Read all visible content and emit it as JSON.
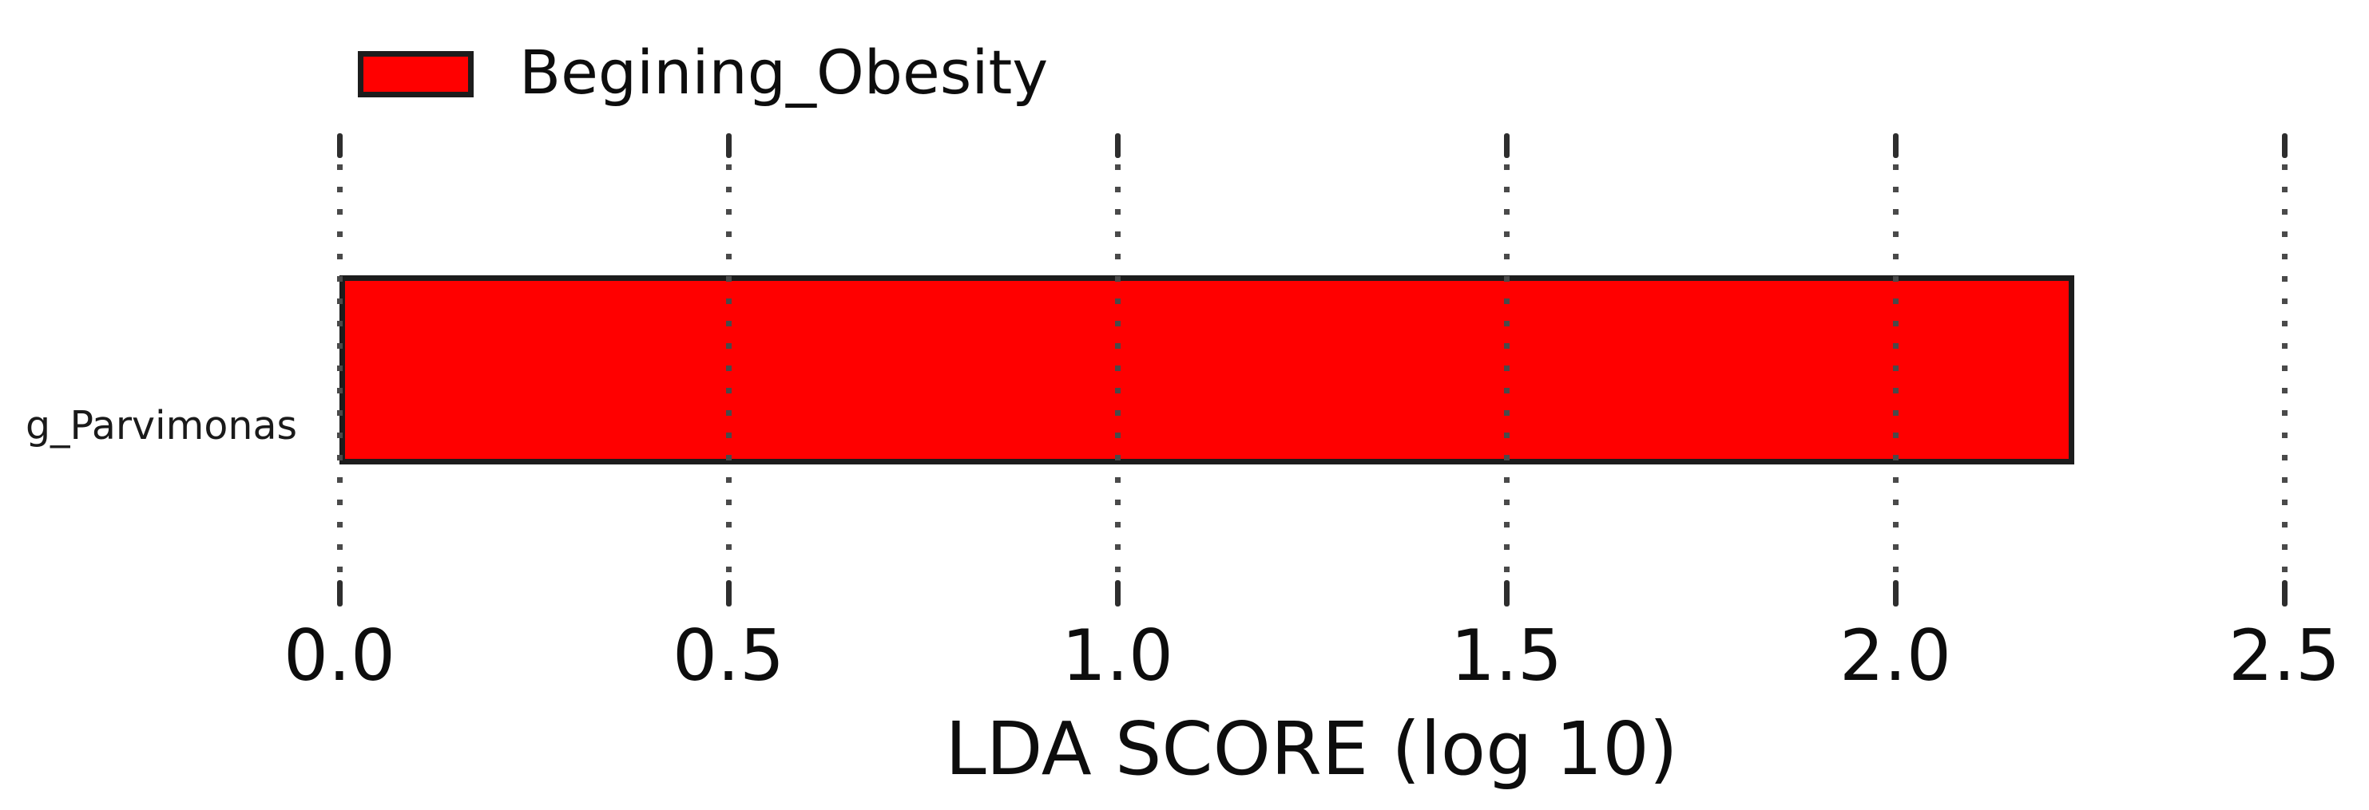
{
  "chart_data": {
    "type": "bar",
    "orientation": "horizontal",
    "title": "",
    "categories": [
      "g_Parvimonas"
    ],
    "series": [
      {
        "name": "Begining_Obesity",
        "values": [
          2.23
        ],
        "color": "#ff0000"
      }
    ],
    "xlabel": "LDA SCORE (log 10)",
    "xlim": [
      0,
      2.5
    ],
    "xticks": [
      "0.0",
      "0.5",
      "1.0",
      "1.5",
      "2.0",
      "2.5"
    ],
    "grid": "dotted-vertical-gridlines-with-tick-dashes",
    "legend_position": "upper-left",
    "bar_edge_color": "#1c1c1c",
    "background_color": "#ffffff"
  },
  "legend": {
    "label": "Begining_Obesity",
    "swatch_color": "#ff0000"
  },
  "axis": {
    "xlabel": "LDA SCORE (log 10)",
    "xticks": [
      "0.0",
      "0.5",
      "1.0",
      "1.5",
      "2.0",
      "2.5"
    ]
  },
  "bar": {
    "label": "g_Parvimonas",
    "value": 2.23
  }
}
